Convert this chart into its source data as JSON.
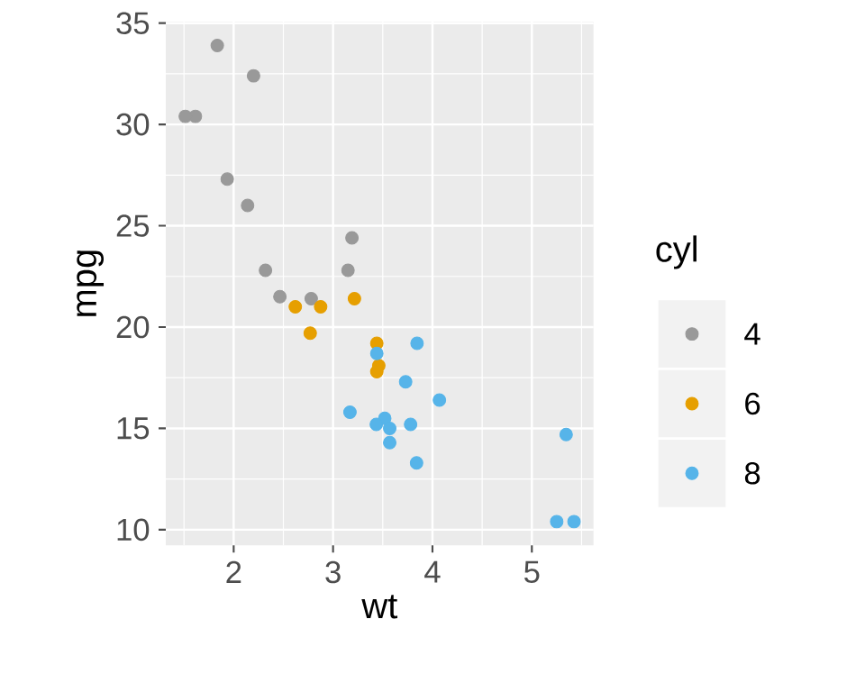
{
  "chart_data": {
    "type": "scatter",
    "xlabel": "wt",
    "ylabel": "mpg",
    "legend_title": "cyl",
    "xlim": [
      1.317,
      5.62
    ],
    "ylim": [
      9.225,
      35.075
    ],
    "xticks": [
      2,
      3,
      4,
      5
    ],
    "yticks": [
      10,
      15,
      20,
      25,
      30,
      35
    ],
    "grid": true,
    "legend": "right",
    "marker": "circle",
    "series": [
      {
        "name": "4",
        "color": "#999999",
        "x": [
          2.32,
          3.19,
          3.15,
          2.2,
          1.615,
          1.835,
          2.465,
          1.935,
          2.14,
          1.513,
          2.78
        ],
        "values": [
          22.8,
          24.4,
          22.8,
          32.4,
          30.4,
          33.9,
          21.5,
          27.3,
          26.0,
          30.4,
          21.4
        ]
      },
      {
        "name": "6",
        "color": "#E69F00",
        "x": [
          2.62,
          2.875,
          3.215,
          3.46,
          3.44,
          3.44,
          2.77
        ],
        "values": [
          21.0,
          21.0,
          21.4,
          18.1,
          19.2,
          17.8,
          19.7
        ]
      },
      {
        "name": "8",
        "color": "#56B4E9",
        "x": [
          3.44,
          3.57,
          4.07,
          3.73,
          3.78,
          5.25,
          5.424,
          5.345,
          3.52,
          3.435,
          3.84,
          3.845,
          3.17,
          3.57
        ],
        "values": [
          18.7,
          14.3,
          16.4,
          17.3,
          15.2,
          10.4,
          10.4,
          14.7,
          15.5,
          15.2,
          13.3,
          19.2,
          15.8,
          15.0
        ]
      }
    ]
  }
}
